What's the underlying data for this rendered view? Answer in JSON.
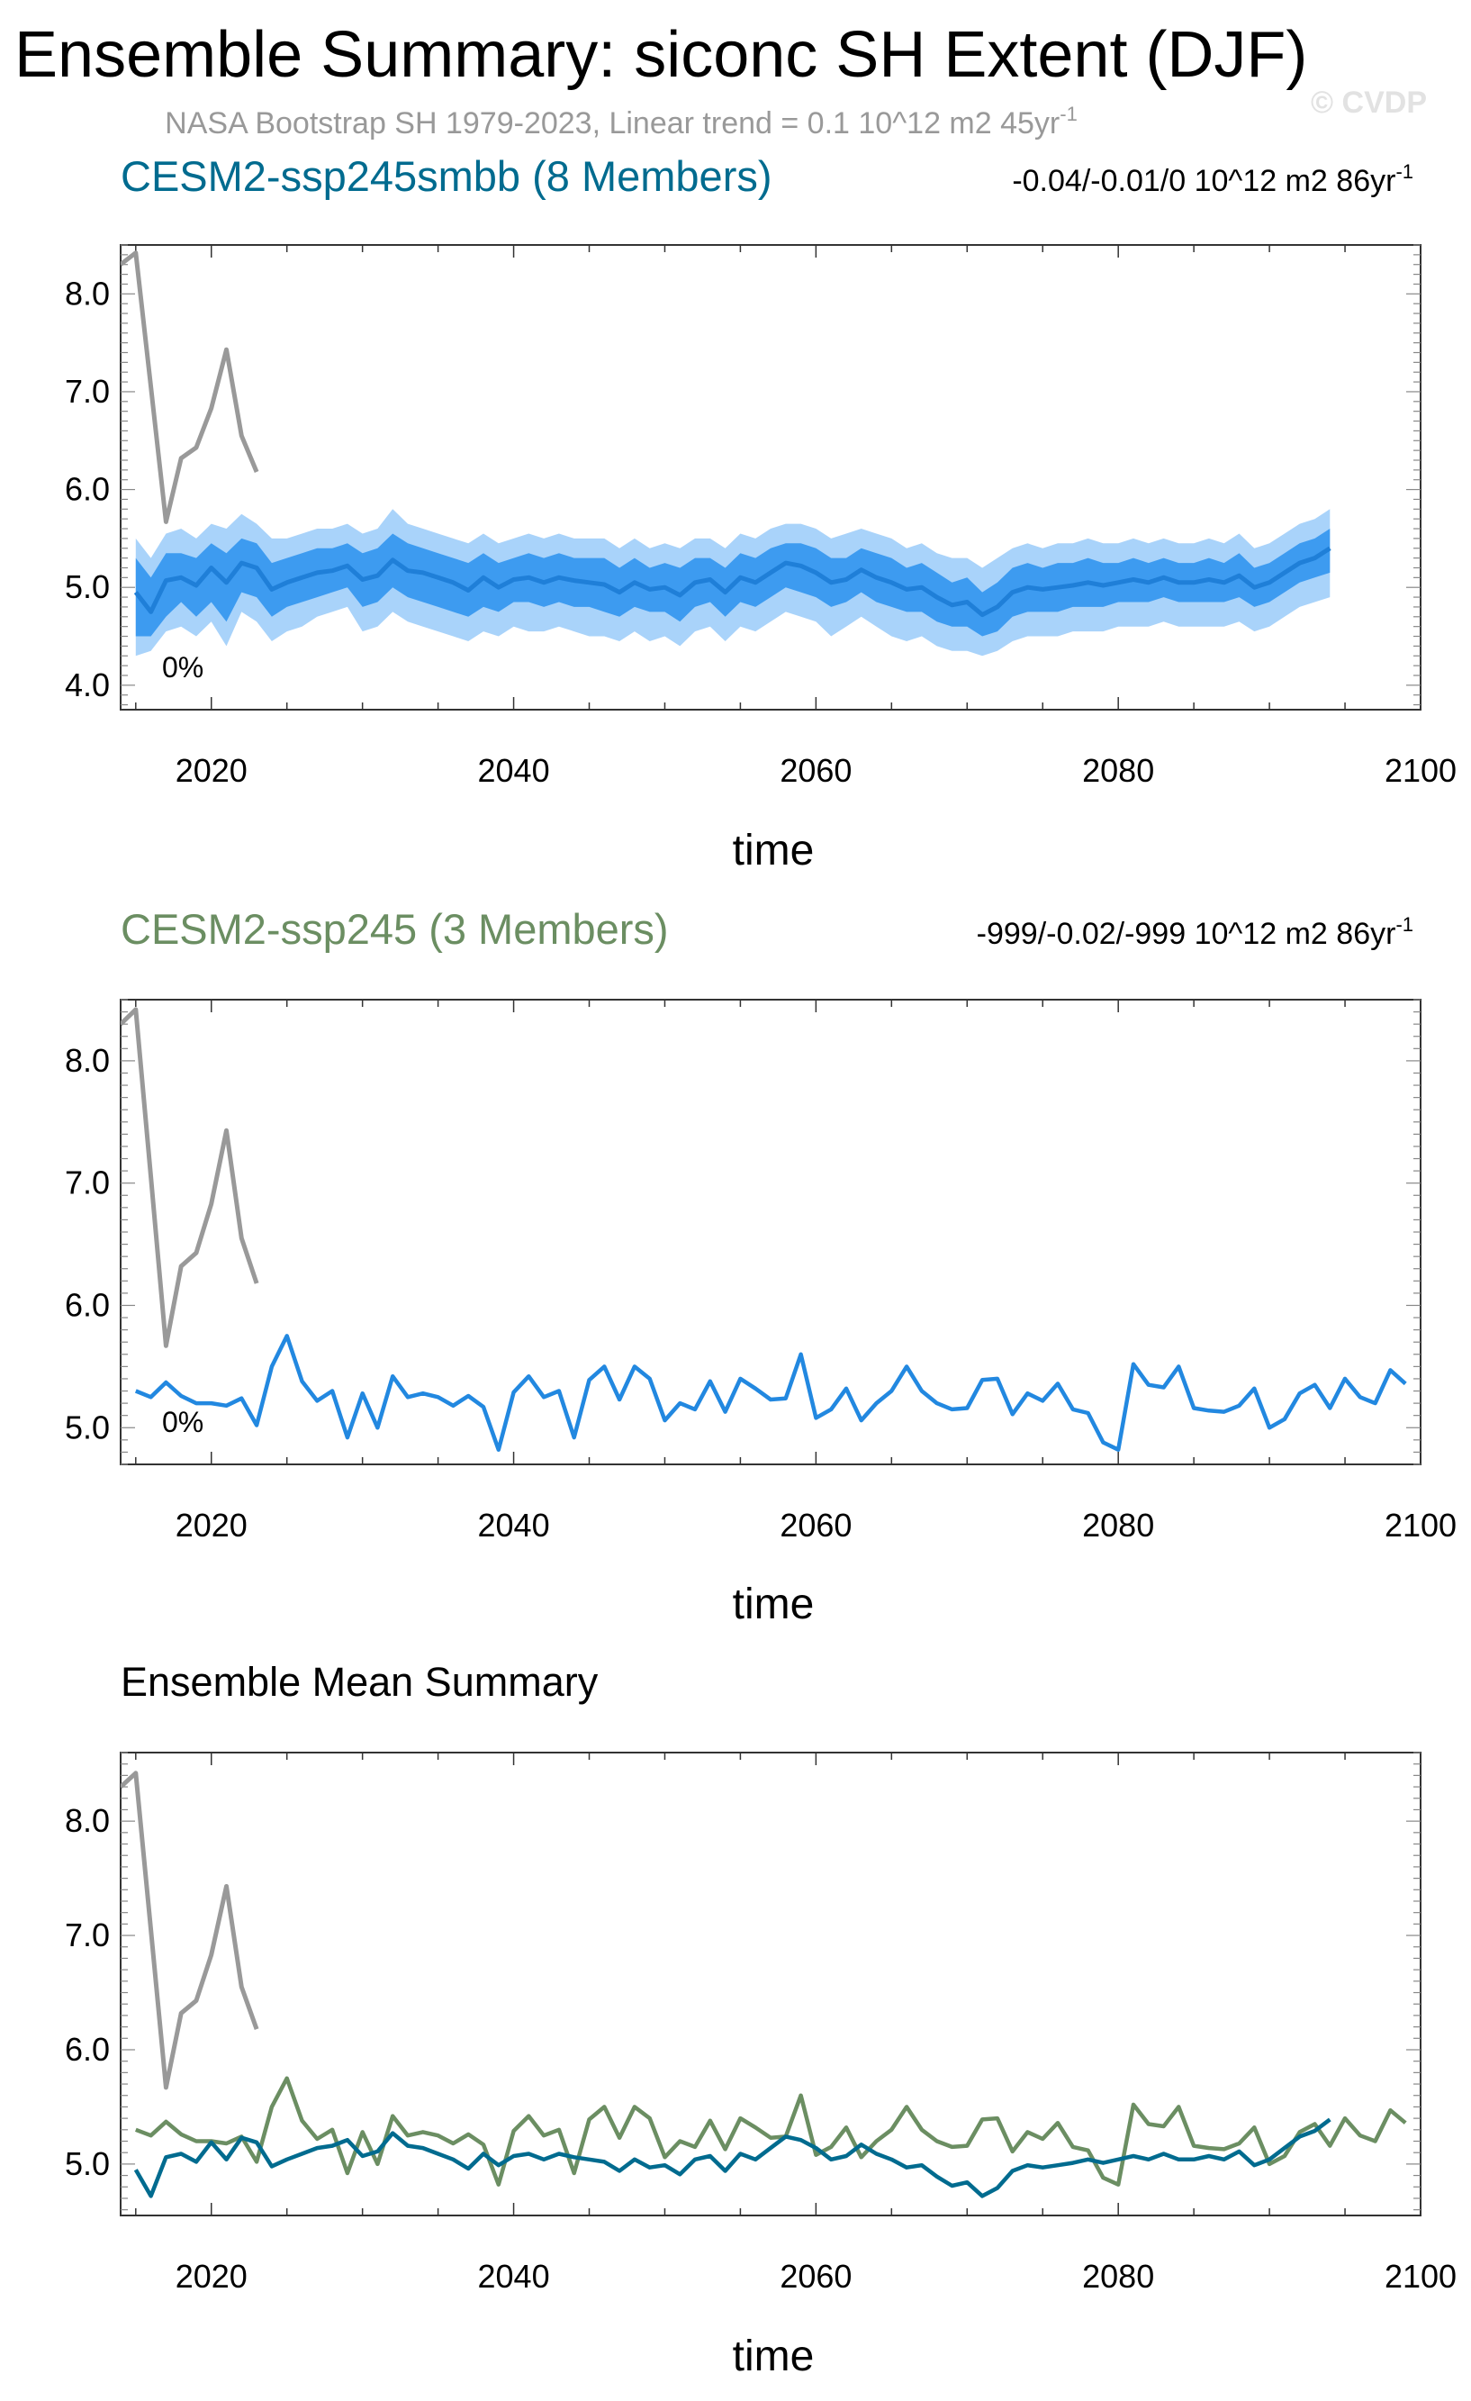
{
  "title": "Ensemble Summary: siconc SH Extent (DJF)",
  "subtitle": "NASA Bootstrap SH 1979-2023, Linear trend = 0.1 10^12 m2 45yr",
  "subtitle_sup": "-1",
  "watermark": "© CVDP",
  "colors": {
    "obs": "#999999",
    "blue_dark": "#006b8f",
    "blue_line": "#2288e0",
    "blue_band_outer": "#a9d3fa",
    "blue_band_inner": "#3d9bf0",
    "green": "#6b8e62",
    "frame": "#333333"
  },
  "chart_data": [
    {
      "type": "area",
      "title": "CESM2-ssp245smbb (8 Members)",
      "trend_label": "-0.04/-0.01/0 10^12 m2 86yr",
      "trend_sup": "-1",
      "pct_label": "0%",
      "xlabel": "time",
      "xlim": [
        2014,
        2100
      ],
      "ylim": [
        3.75,
        8.5
      ],
      "xticks": [
        "2020",
        "2040",
        "2060",
        "2080",
        "2100"
      ],
      "yticks": [
        "4.0",
        "5.0",
        "6.0",
        "7.0",
        "8.0"
      ],
      "series": [
        {
          "role": "obs",
          "x": [
            2014,
            2015,
            2016,
            2017,
            2018,
            2019,
            2020,
            2021,
            2022,
            2023
          ],
          "values": [
            8.3,
            8.42,
            7.05,
            5.67,
            6.32,
            6.43,
            6.83,
            7.43,
            6.55,
            6.18
          ]
        },
        {
          "role": "mean",
          "x_start": 2015,
          "values": [
            4.95,
            4.75,
            5.07,
            5.1,
            5.02,
            5.2,
            5.05,
            5.25,
            5.2,
            4.98,
            5.05,
            5.1,
            5.15,
            5.17,
            5.22,
            5.08,
            5.12,
            5.28,
            5.17,
            5.15,
            5.1,
            5.05,
            4.97,
            5.1,
            5.0,
            5.08,
            5.1,
            5.05,
            5.1,
            5.07,
            5.05,
            5.03,
            4.95,
            5.05,
            4.98,
            5.0,
            4.92,
            5.05,
            5.08,
            4.95,
            5.1,
            5.05,
            5.15,
            5.25,
            5.22,
            5.15,
            5.05,
            5.08,
            5.18,
            5.1,
            5.05,
            4.98,
            5.0,
            4.9,
            4.82,
            4.85,
            4.72,
            4.8,
            4.95,
            5.0,
            4.98,
            5.0,
            5.02,
            5.05,
            5.02,
            5.05,
            5.08,
            5.05,
            5.1,
            5.05,
            5.05,
            5.08,
            5.05,
            5.12,
            5.0,
            5.05,
            5.15,
            5.25,
            5.3,
            5.4
          ]
        },
        {
          "role": "range_inner",
          "x_start": 2015,
          "low": [
            4.5,
            4.5,
            4.7,
            4.85,
            4.7,
            4.85,
            4.65,
            4.95,
            4.9,
            4.7,
            4.8,
            4.85,
            4.9,
            4.95,
            5.0,
            4.8,
            4.85,
            5.0,
            4.9,
            4.85,
            4.8,
            4.75,
            4.7,
            4.8,
            4.75,
            4.85,
            4.85,
            4.8,
            4.85,
            4.8,
            4.8,
            4.75,
            4.7,
            4.8,
            4.75,
            4.75,
            4.65,
            4.8,
            4.85,
            4.7,
            4.85,
            4.8,
            4.9,
            5.0,
            4.95,
            4.9,
            4.8,
            4.85,
            4.95,
            4.85,
            4.8,
            4.75,
            4.75,
            4.65,
            4.6,
            4.6,
            4.5,
            4.55,
            4.7,
            4.75,
            4.75,
            4.75,
            4.8,
            4.8,
            4.8,
            4.85,
            4.85,
            4.85,
            4.9,
            4.85,
            4.85,
            4.85,
            4.85,
            4.9,
            4.8,
            4.85,
            4.95,
            5.05,
            5.1,
            5.15
          ],
          "high": [
            5.3,
            5.1,
            5.35,
            5.35,
            5.3,
            5.45,
            5.35,
            5.5,
            5.45,
            5.25,
            5.3,
            5.35,
            5.4,
            5.4,
            5.45,
            5.35,
            5.4,
            5.55,
            5.45,
            5.4,
            5.35,
            5.3,
            5.25,
            5.35,
            5.25,
            5.3,
            5.35,
            5.3,
            5.35,
            5.3,
            5.3,
            5.3,
            5.2,
            5.3,
            5.2,
            5.25,
            5.2,
            5.3,
            5.3,
            5.2,
            5.35,
            5.3,
            5.4,
            5.45,
            5.45,
            5.4,
            5.3,
            5.3,
            5.4,
            5.35,
            5.3,
            5.2,
            5.25,
            5.15,
            5.05,
            5.1,
            4.95,
            5.05,
            5.2,
            5.25,
            5.2,
            5.25,
            5.25,
            5.3,
            5.25,
            5.25,
            5.3,
            5.25,
            5.3,
            5.25,
            5.25,
            5.3,
            5.25,
            5.35,
            5.2,
            5.25,
            5.35,
            5.45,
            5.5,
            5.6
          ]
        },
        {
          "role": "range_outer",
          "x_start": 2015,
          "low": [
            4.3,
            4.35,
            4.55,
            4.6,
            4.5,
            4.65,
            4.4,
            4.75,
            4.65,
            4.45,
            4.55,
            4.6,
            4.7,
            4.75,
            4.8,
            4.55,
            4.6,
            4.75,
            4.65,
            4.6,
            4.55,
            4.5,
            4.45,
            4.55,
            4.5,
            4.6,
            4.55,
            4.55,
            4.6,
            4.55,
            4.5,
            4.5,
            4.45,
            4.55,
            4.45,
            4.5,
            4.4,
            4.55,
            4.6,
            4.45,
            4.6,
            4.55,
            4.65,
            4.75,
            4.7,
            4.65,
            4.5,
            4.6,
            4.7,
            4.6,
            4.5,
            4.45,
            4.5,
            4.4,
            4.35,
            4.35,
            4.3,
            4.35,
            4.45,
            4.5,
            4.5,
            4.5,
            4.55,
            4.55,
            4.55,
            4.6,
            4.6,
            4.6,
            4.65,
            4.6,
            4.6,
            4.6,
            4.6,
            4.65,
            4.55,
            4.6,
            4.7,
            4.8,
            4.85,
            4.9
          ],
          "high": [
            5.5,
            5.3,
            5.55,
            5.6,
            5.5,
            5.65,
            5.6,
            5.75,
            5.65,
            5.5,
            5.5,
            5.55,
            5.6,
            5.6,
            5.65,
            5.55,
            5.6,
            5.8,
            5.65,
            5.6,
            5.55,
            5.5,
            5.45,
            5.55,
            5.45,
            5.5,
            5.55,
            5.5,
            5.55,
            5.5,
            5.5,
            5.5,
            5.4,
            5.5,
            5.4,
            5.45,
            5.4,
            5.5,
            5.5,
            5.4,
            5.55,
            5.5,
            5.6,
            5.65,
            5.65,
            5.6,
            5.5,
            5.55,
            5.6,
            5.55,
            5.5,
            5.4,
            5.45,
            5.35,
            5.3,
            5.3,
            5.2,
            5.3,
            5.4,
            5.45,
            5.4,
            5.45,
            5.45,
            5.5,
            5.45,
            5.45,
            5.5,
            5.45,
            5.5,
            5.45,
            5.45,
            5.5,
            5.45,
            5.55,
            5.4,
            5.45,
            5.55,
            5.65,
            5.7,
            5.8
          ]
        }
      ]
    },
    {
      "type": "line",
      "title": "CESM2-ssp245 (3 Members)",
      "trend_label": "-999/-0.02/-999 10^12 m2 86yr",
      "trend_sup": "-1",
      "pct_label": "0%",
      "xlabel": "time",
      "xlim": [
        2014,
        2100
      ],
      "ylim": [
        4.7,
        8.5
      ],
      "xticks": [
        "2020",
        "2040",
        "2060",
        "2080",
        "2100"
      ],
      "yticks": [
        "5.0",
        "6.0",
        "7.0",
        "8.0"
      ],
      "series": [
        {
          "role": "obs",
          "x": [
            2014,
            2015,
            2016,
            2017,
            2018,
            2019,
            2020,
            2021,
            2022,
            2023
          ],
          "values": [
            8.3,
            8.42,
            7.05,
            5.67,
            6.32,
            6.43,
            6.83,
            7.43,
            6.55,
            6.18
          ]
        },
        {
          "role": "member",
          "x_start": 2015,
          "values": [
            5.3,
            5.25,
            5.37,
            5.26,
            5.2,
            5.2,
            5.18,
            5.24,
            5.02,
            5.5,
            5.75,
            5.38,
            5.22,
            5.3,
            4.92,
            5.28,
            5.0,
            5.42,
            5.25,
            5.28,
            5.25,
            5.18,
            5.26,
            5.17,
            4.82,
            5.29,
            5.42,
            5.25,
            5.3,
            4.92,
            5.39,
            5.5,
            5.23,
            5.5,
            5.4,
            5.06,
            5.2,
            5.15,
            5.38,
            5.13,
            5.4,
            5.32,
            5.23,
            5.24,
            5.6,
            5.08,
            5.15,
            5.32,
            5.06,
            5.2,
            5.3,
            5.5,
            5.3,
            5.2,
            5.15,
            5.16,
            5.39,
            5.4,
            5.11,
            5.28,
            5.22,
            5.36,
            5.15,
            5.12,
            4.88,
            4.82,
            5.52,
            5.35,
            5.33,
            5.5,
            5.16,
            5.14,
            5.13,
            5.18,
            5.32,
            5.0,
            5.07,
            5.28,
            5.35,
            5.16,
            5.4,
            5.25,
            5.2,
            5.47,
            5.36
          ]
        }
      ]
    },
    {
      "type": "line",
      "title": "Ensemble Mean Summary",
      "xlabel": "time",
      "xlim": [
        2014,
        2100
      ],
      "ylim": [
        4.55,
        8.6
      ],
      "xticks": [
        "2020",
        "2040",
        "2060",
        "2080",
        "2100"
      ],
      "yticks": [
        "5.0",
        "6.0",
        "7.0",
        "8.0"
      ],
      "series": [
        {
          "role": "obs",
          "x": [
            2014,
            2015,
            2016,
            2017,
            2018,
            2019,
            2020,
            2021,
            2022,
            2023
          ],
          "values": [
            8.3,
            8.42,
            7.05,
            5.67,
            6.32,
            6.43,
            6.83,
            7.43,
            6.55,
            6.18
          ]
        },
        {
          "role": "green",
          "x_start": 2015,
          "values": [
            5.3,
            5.25,
            5.37,
            5.26,
            5.2,
            5.2,
            5.18,
            5.24,
            5.02,
            5.5,
            5.75,
            5.38,
            5.22,
            5.3,
            4.92,
            5.28,
            5.0,
            5.42,
            5.25,
            5.28,
            5.25,
            5.18,
            5.26,
            5.17,
            4.82,
            5.29,
            5.42,
            5.25,
            5.3,
            4.92,
            5.39,
            5.5,
            5.23,
            5.5,
            5.4,
            5.06,
            5.2,
            5.15,
            5.38,
            5.13,
            5.4,
            5.32,
            5.23,
            5.24,
            5.6,
            5.08,
            5.15,
            5.32,
            5.06,
            5.2,
            5.3,
            5.5,
            5.3,
            5.2,
            5.15,
            5.16,
            5.39,
            5.4,
            5.11,
            5.28,
            5.22,
            5.36,
            5.15,
            5.12,
            4.88,
            4.82,
            5.52,
            5.35,
            5.33,
            5.5,
            5.16,
            5.14,
            5.13,
            5.18,
            5.32,
            5.0,
            5.07,
            5.28,
            5.35,
            5.16,
            5.4,
            5.25,
            5.2,
            5.47,
            5.36
          ]
        },
        {
          "role": "blue",
          "x_start": 2015,
          "values": [
            4.95,
            4.72,
            5.06,
            5.09,
            5.02,
            5.19,
            5.04,
            5.23,
            5.19,
            4.98,
            5.04,
            5.09,
            5.14,
            5.16,
            5.21,
            5.07,
            5.11,
            5.27,
            5.16,
            5.14,
            5.09,
            5.04,
            4.96,
            5.09,
            4.99,
            5.07,
            5.09,
            5.04,
            5.09,
            5.06,
            5.04,
            5.02,
            4.94,
            5.04,
            4.97,
            4.99,
            4.91,
            5.04,
            5.07,
            4.94,
            5.09,
            5.04,
            5.14,
            5.24,
            5.21,
            5.14,
            5.04,
            5.07,
            5.17,
            5.09,
            5.04,
            4.97,
            4.99,
            4.89,
            4.81,
            4.84,
            4.72,
            4.79,
            4.94,
            4.99,
            4.97,
            4.99,
            5.01,
            5.04,
            5.01,
            5.04,
            5.07,
            5.04,
            5.09,
            5.04,
            5.04,
            5.07,
            5.04,
            5.11,
            4.99,
            5.04,
            5.14,
            5.24,
            5.29,
            5.39
          ]
        }
      ]
    }
  ]
}
